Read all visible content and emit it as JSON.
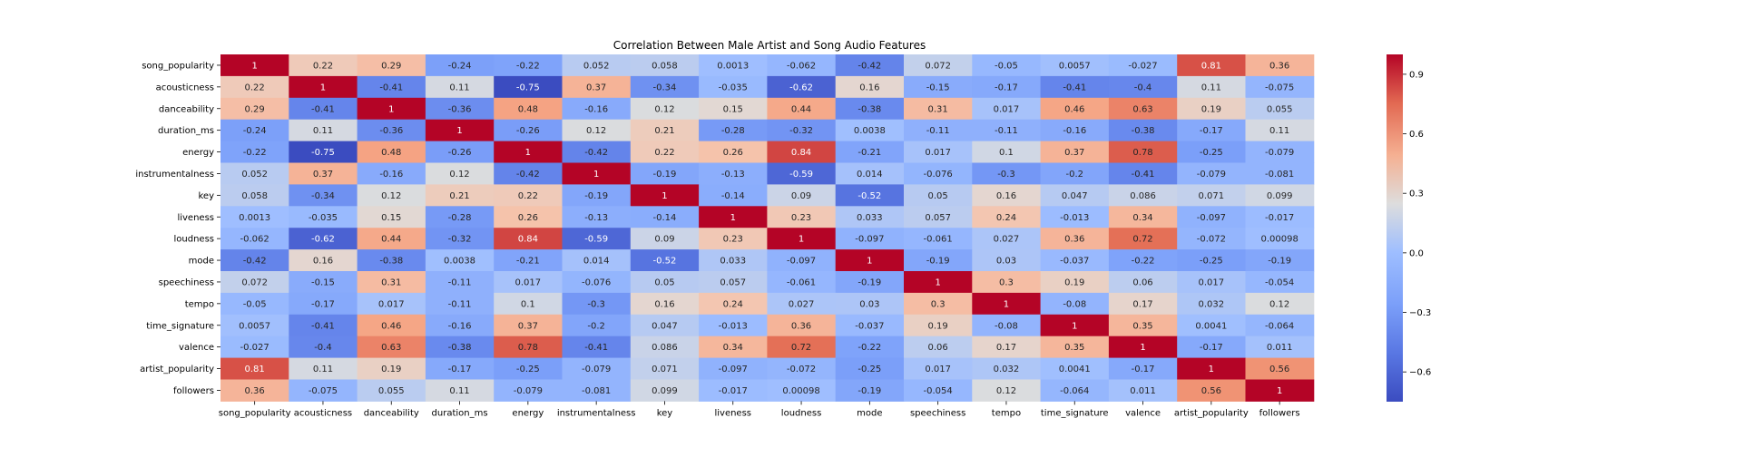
{
  "chart_data": {
    "type": "heatmap",
    "title": "Correlation Between Male Artist and Song Audio Features",
    "labels": [
      "song_popularity",
      "acousticness",
      "danceability",
      "duration_ms",
      "energy",
      "instrumentalness",
      "key",
      "liveness",
      "loudness",
      "mode",
      "speechiness",
      "tempo",
      "time_signature",
      "valence",
      "artist_popularity",
      "followers"
    ],
    "values": [
      [
        1,
        0.22,
        0.29,
        -0.24,
        -0.22,
        0.052,
        0.058,
        0.0013,
        -0.062,
        -0.42,
        0.072,
        -0.05,
        0.0057,
        -0.027,
        0.81,
        0.36
      ],
      [
        0.22,
        1,
        -0.41,
        0.11,
        -0.75,
        0.37,
        -0.34,
        -0.035,
        -0.62,
        0.16,
        -0.15,
        -0.17,
        -0.41,
        -0.4,
        0.11,
        -0.075
      ],
      [
        0.29,
        -0.41,
        1,
        -0.36,
        0.48,
        -0.16,
        0.12,
        0.15,
        0.44,
        -0.38,
        0.31,
        0.017,
        0.46,
        0.63,
        0.19,
        0.055
      ],
      [
        -0.24,
        0.11,
        -0.36,
        1,
        -0.26,
        0.12,
        0.21,
        -0.28,
        -0.32,
        0.0038,
        -0.11,
        -0.11,
        -0.16,
        -0.38,
        -0.17,
        0.11
      ],
      [
        -0.22,
        -0.75,
        0.48,
        -0.26,
        1,
        -0.42,
        0.22,
        0.26,
        0.84,
        -0.21,
        0.017,
        0.1,
        0.37,
        0.78,
        -0.25,
        -0.079
      ],
      [
        0.052,
        0.37,
        -0.16,
        0.12,
        -0.42,
        1,
        -0.19,
        -0.13,
        -0.59,
        0.014,
        -0.076,
        -0.3,
        -0.2,
        -0.41,
        -0.079,
        -0.081
      ],
      [
        0.058,
        -0.34,
        0.12,
        0.21,
        0.22,
        -0.19,
        1,
        -0.14,
        0.09,
        -0.52,
        0.05,
        0.16,
        0.047,
        0.086,
        0.071,
        0.099
      ],
      [
        0.0013,
        -0.035,
        0.15,
        -0.28,
        0.26,
        -0.13,
        -0.14,
        1,
        0.23,
        0.033,
        0.057,
        0.24,
        -0.013,
        0.34,
        -0.097,
        -0.017
      ],
      [
        -0.062,
        -0.62,
        0.44,
        -0.32,
        0.84,
        -0.59,
        0.09,
        0.23,
        1,
        -0.097,
        -0.061,
        0.027,
        0.36,
        0.72,
        -0.072,
        0.00098
      ],
      [
        -0.42,
        0.16,
        -0.38,
        0.0038,
        -0.21,
        0.014,
        -0.52,
        0.033,
        -0.097,
        1,
        -0.19,
        0.03,
        -0.037,
        -0.22,
        -0.25,
        -0.19
      ],
      [
        0.072,
        -0.15,
        0.31,
        -0.11,
        0.017,
        -0.076,
        0.05,
        0.057,
        -0.061,
        -0.19,
        1,
        0.3,
        0.19,
        0.06,
        0.017,
        -0.054
      ],
      [
        -0.05,
        -0.17,
        0.017,
        -0.11,
        0.1,
        -0.3,
        0.16,
        0.24,
        0.027,
        0.03,
        0.3,
        1,
        -0.08,
        0.17,
        0.032,
        0.12
      ],
      [
        0.0057,
        -0.41,
        0.46,
        -0.16,
        0.37,
        -0.2,
        0.047,
        -0.013,
        0.36,
        -0.037,
        0.19,
        -0.08,
        1,
        0.35,
        0.0041,
        -0.064
      ],
      [
        -0.027,
        -0.4,
        0.63,
        -0.38,
        0.78,
        -0.41,
        0.086,
        0.34,
        0.72,
        -0.22,
        0.06,
        0.17,
        0.35,
        1,
        -0.17,
        0.011
      ],
      [
        0.81,
        0.11,
        0.19,
        -0.17,
        -0.25,
        -0.079,
        0.071,
        -0.097,
        -0.072,
        -0.25,
        0.017,
        0.032,
        0.0041,
        -0.17,
        1,
        0.56
      ],
      [
        0.36,
        -0.075,
        0.055,
        0.11,
        -0.079,
        -0.081,
        0.099,
        -0.017,
        0.00098,
        -0.19,
        -0.054,
        0.12,
        -0.064,
        0.011,
        0.56,
        1
      ]
    ],
    "colormap": "coolwarm",
    "color_range": [
      -0.75,
      1
    ],
    "colorbar_ticks": [
      0.9,
      0.6,
      0.3,
      0.0,
      -0.3,
      -0.6
    ],
    "colorbar_tick_labels": [
      "0.9",
      "0.6",
      "0.3",
      "0.0",
      "−0.3",
      "−0.6"
    ],
    "annotated": true
  }
}
